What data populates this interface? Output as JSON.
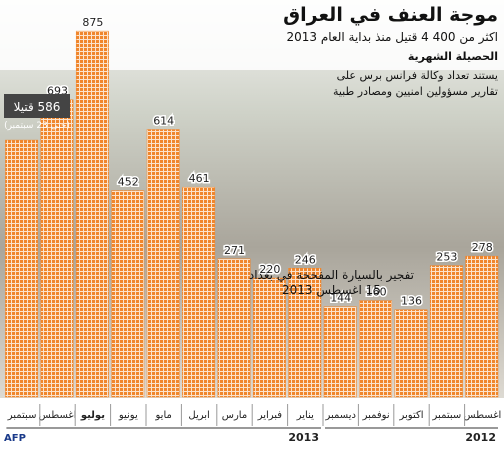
{
  "title": "موجة العنف في العراق",
  "subtitle": "اكثر من 400 4 قتيل منذ بداية العام 2013",
  "credit": "AFP",
  "chart_data": {
    "type": "bar",
    "title": "الحصيلة الشهرية",
    "note": "يستند تعداد وكالة فرانس برس على تقارير مسؤولين امنيين ومصادر طبية",
    "categories": [
      "اغسطس",
      "سبتمبر",
      "اكتوبر",
      "نوفمبر",
      "ديسمبر",
      "يناير",
      "فبراير",
      "مارس",
      "ابريل",
      "مايو",
      "يونيو",
      "يوليو",
      "اغسطس",
      "سبتمبر"
    ],
    "years": [
      "2012",
      "2012",
      "2012",
      "2012",
      "2012",
      "2013",
      "2013",
      "2013",
      "2013",
      "2013",
      "2013",
      "2013",
      "2013",
      "2013"
    ],
    "values": [
      278,
      253,
      136,
      160,
      144,
      246,
      220,
      271,
      461,
      614,
      452,
      875,
      693,
      586
    ],
    "value_labels": [
      "278",
      "253",
      "136",
      "160",
      "144",
      "246",
      "220",
      "271",
      "461",
      "614",
      "452",
      "875",
      "693",
      "586 قتيلا"
    ],
    "last_note": "(حتى 23 سبتمبر)",
    "annotation": {
      "text": "تفجير بالسيارة المفخخة في بغداد",
      "date": "15 اغسطس 2013"
    },
    "color": "#f0862c"
  }
}
